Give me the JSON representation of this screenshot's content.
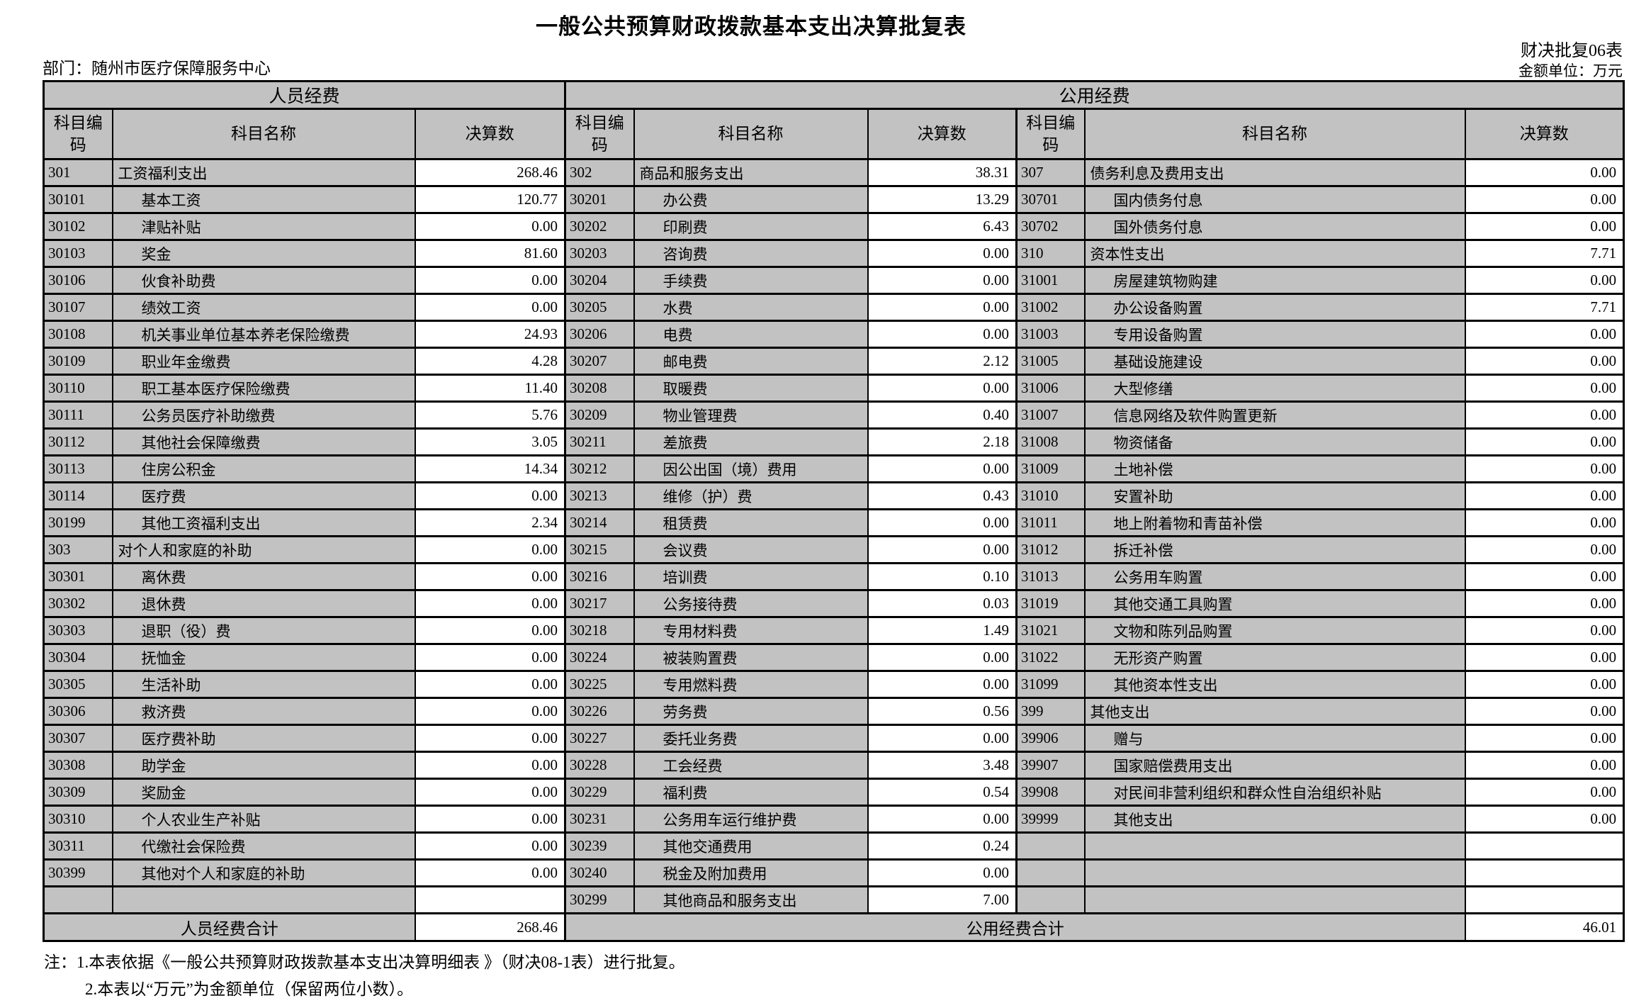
{
  "title": "一般公共预算财政拨款基本支出决算批复表",
  "meta": {
    "form_code": "财决批复06表",
    "unit_label": "金额单位：万元",
    "department_label": "部门：随州市医疗保障服务中心"
  },
  "table": {
    "section_headers": {
      "personnel": "人员经费",
      "public": "公用经费"
    },
    "column_headers": {
      "code": "科目编码",
      "name": "科目名称",
      "amount": "决算数"
    },
    "rows": [
      {
        "l": {
          "code": "301",
          "name": "工资福利支出",
          "value": "268.46",
          "sub": false
        },
        "m": {
          "code": "302",
          "name": "商品和服务支出",
          "value": "38.31",
          "sub": false
        },
        "r": {
          "code": "307",
          "name": "债务利息及费用支出",
          "value": "0.00",
          "sub": false
        }
      },
      {
        "l": {
          "code": "30101",
          "name": "基本工资",
          "value": "120.77",
          "sub": true
        },
        "m": {
          "code": "30201",
          "name": "办公费",
          "value": "13.29",
          "sub": true
        },
        "r": {
          "code": "30701",
          "name": "国内债务付息",
          "value": "0.00",
          "sub": true
        }
      },
      {
        "l": {
          "code": "30102",
          "name": "津贴补贴",
          "value": "0.00",
          "sub": true
        },
        "m": {
          "code": "30202",
          "name": "印刷费",
          "value": "6.43",
          "sub": true
        },
        "r": {
          "code": "30702",
          "name": "国外债务付息",
          "value": "0.00",
          "sub": true
        }
      },
      {
        "l": {
          "code": "30103",
          "name": "奖金",
          "value": "81.60",
          "sub": true
        },
        "m": {
          "code": "30203",
          "name": "咨询费",
          "value": "0.00",
          "sub": true
        },
        "r": {
          "code": "310",
          "name": "资本性支出",
          "value": "7.71",
          "sub": false
        }
      },
      {
        "l": {
          "code": "30106",
          "name": "伙食补助费",
          "value": "0.00",
          "sub": true
        },
        "m": {
          "code": "30204",
          "name": "手续费",
          "value": "0.00",
          "sub": true
        },
        "r": {
          "code": "31001",
          "name": "房屋建筑物购建",
          "value": "0.00",
          "sub": true
        }
      },
      {
        "l": {
          "code": "30107",
          "name": "绩效工资",
          "value": "0.00",
          "sub": true
        },
        "m": {
          "code": "30205",
          "name": "水费",
          "value": "0.00",
          "sub": true
        },
        "r": {
          "code": "31002",
          "name": "办公设备购置",
          "value": "7.71",
          "sub": true
        }
      },
      {
        "l": {
          "code": "30108",
          "name": "机关事业单位基本养老保险缴费",
          "value": "24.93",
          "sub": true
        },
        "m": {
          "code": "30206",
          "name": "电费",
          "value": "0.00",
          "sub": true
        },
        "r": {
          "code": "31003",
          "name": "专用设备购置",
          "value": "0.00",
          "sub": true
        }
      },
      {
        "l": {
          "code": "30109",
          "name": "职业年金缴费",
          "value": "4.28",
          "sub": true
        },
        "m": {
          "code": "30207",
          "name": "邮电费",
          "value": "2.12",
          "sub": true
        },
        "r": {
          "code": "31005",
          "name": "基础设施建设",
          "value": "0.00",
          "sub": true
        }
      },
      {
        "l": {
          "code": "30110",
          "name": "职工基本医疗保险缴费",
          "value": "11.40",
          "sub": true
        },
        "m": {
          "code": "30208",
          "name": "取暖费",
          "value": "0.00",
          "sub": true
        },
        "r": {
          "code": "31006",
          "name": "大型修缮",
          "value": "0.00",
          "sub": true
        }
      },
      {
        "l": {
          "code": "30111",
          "name": "公务员医疗补助缴费",
          "value": "5.76",
          "sub": true
        },
        "m": {
          "code": "30209",
          "name": "物业管理费",
          "value": "0.40",
          "sub": true
        },
        "r": {
          "code": "31007",
          "name": "信息网络及软件购置更新",
          "value": "0.00",
          "sub": true
        }
      },
      {
        "l": {
          "code": "30112",
          "name": "其他社会保障缴费",
          "value": "3.05",
          "sub": true
        },
        "m": {
          "code": "30211",
          "name": "差旅费",
          "value": "2.18",
          "sub": true
        },
        "r": {
          "code": "31008",
          "name": "物资储备",
          "value": "0.00",
          "sub": true
        }
      },
      {
        "l": {
          "code": "30113",
          "name": "住房公积金",
          "value": "14.34",
          "sub": true
        },
        "m": {
          "code": "30212",
          "name": "因公出国（境）费用",
          "value": "0.00",
          "sub": true
        },
        "r": {
          "code": "31009",
          "name": "土地补偿",
          "value": "0.00",
          "sub": true
        }
      },
      {
        "l": {
          "code": "30114",
          "name": "医疗费",
          "value": "0.00",
          "sub": true
        },
        "m": {
          "code": "30213",
          "name": "维修（护）费",
          "value": "0.43",
          "sub": true
        },
        "r": {
          "code": "31010",
          "name": "安置补助",
          "value": "0.00",
          "sub": true
        }
      },
      {
        "l": {
          "code": "30199",
          "name": "其他工资福利支出",
          "value": "2.34",
          "sub": true
        },
        "m": {
          "code": "30214",
          "name": "租赁费",
          "value": "0.00",
          "sub": true
        },
        "r": {
          "code": "31011",
          "name": "地上附着物和青苗补偿",
          "value": "0.00",
          "sub": true
        }
      },
      {
        "l": {
          "code": "303",
          "name": "对个人和家庭的补助",
          "value": "0.00",
          "sub": false
        },
        "m": {
          "code": "30215",
          "name": "会议费",
          "value": "0.00",
          "sub": true
        },
        "r": {
          "code": "31012",
          "name": "拆迁补偿",
          "value": "0.00",
          "sub": true
        }
      },
      {
        "l": {
          "code": "30301",
          "name": "离休费",
          "value": "0.00",
          "sub": true
        },
        "m": {
          "code": "30216",
          "name": "培训费",
          "value": "0.10",
          "sub": true
        },
        "r": {
          "code": "31013",
          "name": "公务用车购置",
          "value": "0.00",
          "sub": true
        }
      },
      {
        "l": {
          "code": "30302",
          "name": "退休费",
          "value": "0.00",
          "sub": true
        },
        "m": {
          "code": "30217",
          "name": "公务接待费",
          "value": "0.03",
          "sub": true
        },
        "r": {
          "code": "31019",
          "name": "其他交通工具购置",
          "value": "0.00",
          "sub": true
        }
      },
      {
        "l": {
          "code": "30303",
          "name": "退职（役）费",
          "value": "0.00",
          "sub": true
        },
        "m": {
          "code": "30218",
          "name": "专用材料费",
          "value": "1.49",
          "sub": true
        },
        "r": {
          "code": "31021",
          "name": "文物和陈列品购置",
          "value": "0.00",
          "sub": true
        }
      },
      {
        "l": {
          "code": "30304",
          "name": "抚恤金",
          "value": "0.00",
          "sub": true
        },
        "m": {
          "code": "30224",
          "name": "被装购置费",
          "value": "0.00",
          "sub": true
        },
        "r": {
          "code": "31022",
          "name": "无形资产购置",
          "value": "0.00",
          "sub": true
        }
      },
      {
        "l": {
          "code": "30305",
          "name": "生活补助",
          "value": "0.00",
          "sub": true
        },
        "m": {
          "code": "30225",
          "name": "专用燃料费",
          "value": "0.00",
          "sub": true
        },
        "r": {
          "code": "31099",
          "name": "其他资本性支出",
          "value": "0.00",
          "sub": true
        }
      },
      {
        "l": {
          "code": "30306",
          "name": "救济费",
          "value": "0.00",
          "sub": true
        },
        "m": {
          "code": "30226",
          "name": "劳务费",
          "value": "0.56",
          "sub": true
        },
        "r": {
          "code": "399",
          "name": "其他支出",
          "value": "0.00",
          "sub": false
        }
      },
      {
        "l": {
          "code": "30307",
          "name": "医疗费补助",
          "value": "0.00",
          "sub": true
        },
        "m": {
          "code": "30227",
          "name": "委托业务费",
          "value": "0.00",
          "sub": true
        },
        "r": {
          "code": "39906",
          "name": "赠与",
          "value": "0.00",
          "sub": true
        }
      },
      {
        "l": {
          "code": "30308",
          "name": "助学金",
          "value": "0.00",
          "sub": true
        },
        "m": {
          "code": "30228",
          "name": "工会经费",
          "value": "3.48",
          "sub": true
        },
        "r": {
          "code": "39907",
          "name": "国家赔偿费用支出",
          "value": "0.00",
          "sub": true
        }
      },
      {
        "l": {
          "code": "30309",
          "name": "奖励金",
          "value": "0.00",
          "sub": true
        },
        "m": {
          "code": "30229",
          "name": "福利费",
          "value": "0.54",
          "sub": true
        },
        "r": {
          "code": "39908",
          "name": "对民间非营利组织和群众性自治组织补贴",
          "value": "0.00",
          "sub": true
        }
      },
      {
        "l": {
          "code": "30310",
          "name": "个人农业生产补贴",
          "value": "0.00",
          "sub": true
        },
        "m": {
          "code": "30231",
          "name": "公务用车运行维护费",
          "value": "0.00",
          "sub": true
        },
        "r": {
          "code": "39999",
          "name": "其他支出",
          "value": "0.00",
          "sub": true
        }
      },
      {
        "l": {
          "code": "30311",
          "name": "代缴社会保险费",
          "value": "0.00",
          "sub": true
        },
        "m": {
          "code": "30239",
          "name": "其他交通费用",
          "value": "0.24",
          "sub": true
        },
        "r": {
          "code": "",
          "name": "",
          "value": "",
          "sub": false
        }
      },
      {
        "l": {
          "code": "30399",
          "name": "其他对个人和家庭的补助",
          "value": "0.00",
          "sub": true
        },
        "m": {
          "code": "30240",
          "name": "税金及附加费用",
          "value": "0.00",
          "sub": true
        },
        "r": {
          "code": "",
          "name": "",
          "value": "",
          "sub": false
        }
      },
      {
        "l": {
          "code": "",
          "name": "",
          "value": "",
          "sub": false
        },
        "m": {
          "code": "30299",
          "name": "其他商品和服务支出",
          "value": "7.00",
          "sub": true
        },
        "r": {
          "code": "",
          "name": "",
          "value": "",
          "sub": false
        }
      }
    ],
    "totals": {
      "personnel_label": "人员经费合计",
      "personnel_value": "268.46",
      "public_label": "公用经费合计",
      "public_value": "46.01"
    }
  },
  "notes": {
    "line1": "注：1.本表依据《一般公共预算财政拨款基本支出决算明细表 》（财决08-1表）进行批复。",
    "line2": "2.本表以“万元”为金额单位（保留两位小数）。"
  }
}
